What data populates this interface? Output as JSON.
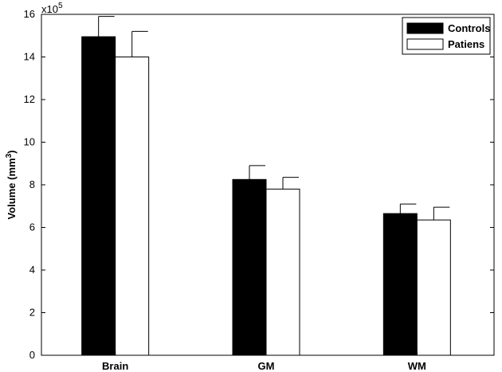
{
  "chart_data": {
    "type": "bar",
    "categories": [
      "Brain",
      "GM",
      "WM"
    ],
    "series": [
      {
        "name": "Controls",
        "values": [
          14.95,
          8.25,
          6.65
        ],
        "errors": [
          0.95,
          0.65,
          0.45
        ],
        "color": "#000000"
      },
      {
        "name": "Patiens",
        "values": [
          14.0,
          7.8,
          6.35
        ],
        "errors": [
          1.2,
          0.55,
          0.6
        ],
        "color": "#ffffff"
      }
    ],
    "ylabel_text": "Volume (mm",
    "ylabel_sup": "3",
    "ylabel_close": ")",
    "exponent_base": "x10",
    "exponent_sup": "5",
    "ylim": [
      0,
      16
    ],
    "yticks": [
      "0",
      "2",
      "4",
      "6",
      "8",
      "10",
      "12",
      "14",
      "16"
    ],
    "legend_position": "top-right",
    "grid": false
  }
}
